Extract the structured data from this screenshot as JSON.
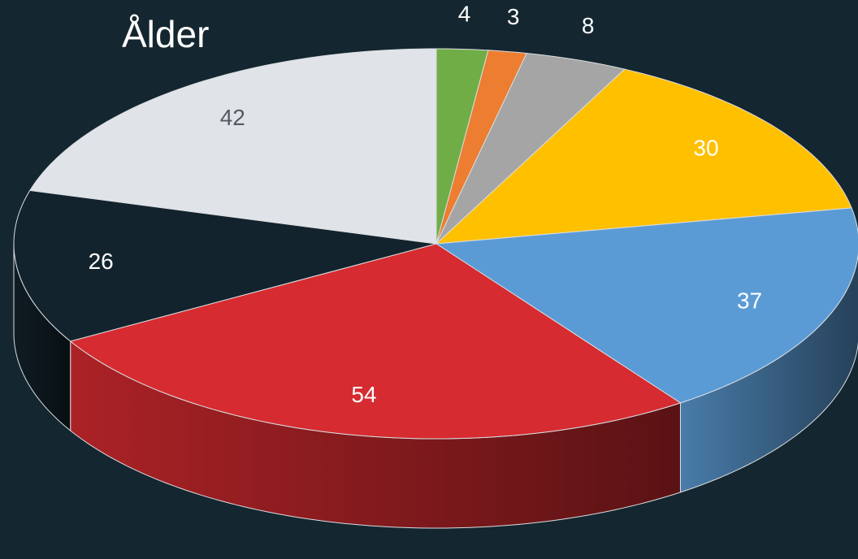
{
  "chart_data": {
    "type": "pie",
    "title": "Ålder",
    "three_d": true,
    "values": [
      4,
      3,
      8,
      30,
      37,
      54,
      26,
      42
    ],
    "colors": [
      "#70ad47",
      "#ed7d31",
      "#a5a5a5",
      "#ffc000",
      "#5b9bd5",
      "#d62b30",
      "#13232d",
      "#e0e4e8"
    ]
  }
}
